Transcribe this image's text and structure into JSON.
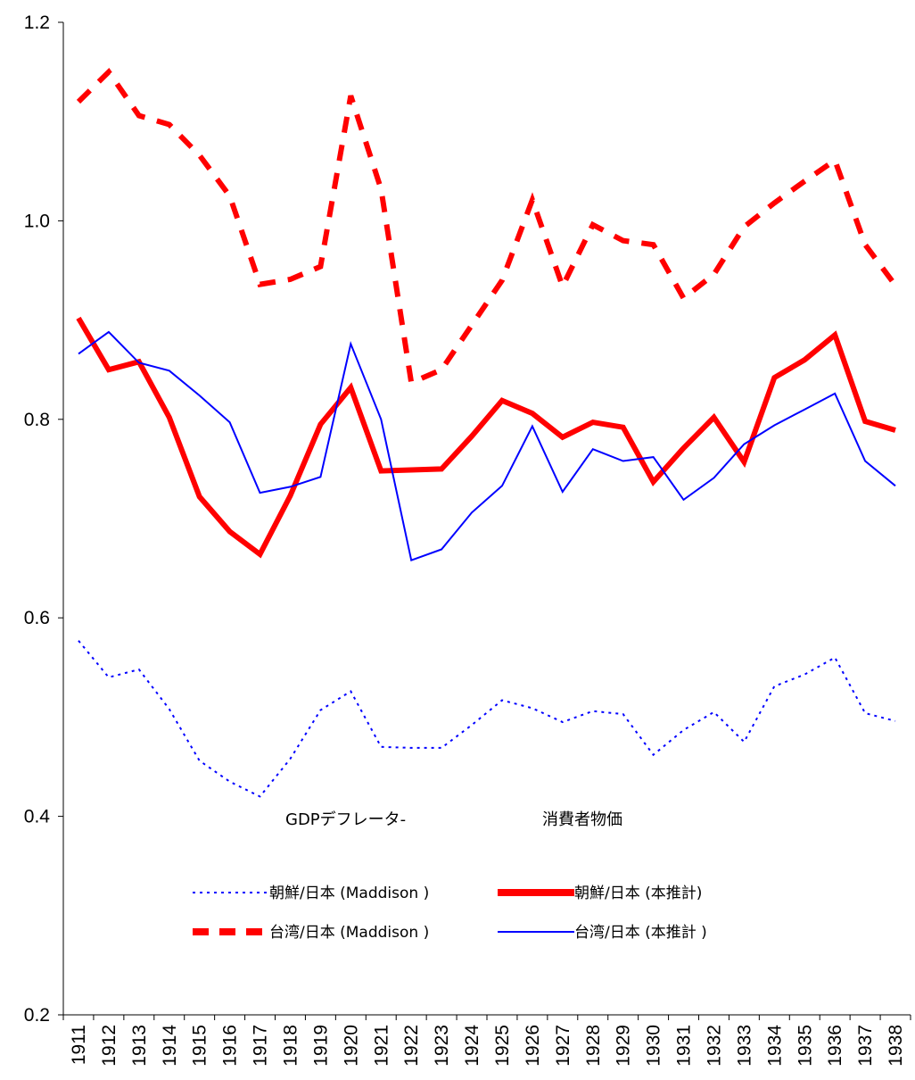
{
  "chart_data": {
    "type": "line",
    "x": [
      1911,
      1912,
      1913,
      1914,
      1915,
      1916,
      1917,
      1918,
      1919,
      1920,
      1921,
      1922,
      1923,
      1924,
      1925,
      1926,
      1927,
      1928,
      1929,
      1930,
      1931,
      1932,
      1933,
      1934,
      1935,
      1936,
      1937,
      1938
    ],
    "categories": [
      "1911",
      "1912",
      "1913",
      "1914",
      "1915",
      "1916",
      "1917",
      "1918",
      "1919",
      "1920",
      "1921",
      "1922",
      "1923",
      "1924",
      "1925",
      "1926",
      "1927",
      "1928",
      "1929",
      "1930",
      "1931",
      "1932",
      "1933",
      "1934",
      "1935",
      "1936",
      "1937",
      "1938"
    ],
    "ylim": [
      0.2,
      1.2
    ],
    "yticks": [
      "0.2",
      "0.4",
      "0.6",
      "0.8",
      "1.0",
      "1.2"
    ],
    "ytick_values": [
      0.2,
      0.4,
      0.6,
      0.8,
      1.0,
      1.2
    ],
    "grid": false,
    "legend_position": "bottom-center",
    "legend_groups": {
      "left": "GDPデフレータ-",
      "right": "消費者物価"
    },
    "series": [
      {
        "name": "朝鮮/日本 (Maddison )",
        "color": "#0000ff",
        "style": "dotted-thin",
        "values": [
          0.577,
          0.54,
          0.548,
          0.508,
          0.456,
          0.435,
          0.42,
          0.458,
          0.507,
          0.526,
          0.47,
          0.469,
          0.469,
          0.492,
          0.517,
          0.509,
          0.495,
          0.506,
          0.503,
          0.462,
          0.487,
          0.505,
          0.475,
          0.531,
          0.543,
          0.56,
          0.504,
          0.496
        ]
      },
      {
        "name": "朝鮮/日本 (本推計)",
        "color": "#ff0000",
        "style": "solid-thick",
        "values": [
          0.902,
          0.85,
          0.858,
          0.802,
          0.722,
          0.687,
          0.664,
          0.723,
          0.795,
          0.832,
          0.748,
          0.749,
          0.75,
          0.783,
          0.819,
          0.806,
          0.782,
          0.797,
          0.792,
          0.737,
          0.771,
          0.802,
          0.757,
          0.842,
          0.86,
          0.885,
          0.798,
          0.789
        ]
      },
      {
        "name": "台湾/日本 (Maddison )",
        "color": "#ff0000",
        "style": "dashed-thick",
        "values": [
          1.12,
          1.15,
          1.106,
          1.097,
          1.066,
          1.025,
          0.936,
          0.941,
          0.954,
          1.126,
          1.032,
          0.837,
          0.85,
          0.895,
          0.94,
          1.021,
          0.934,
          0.996,
          0.98,
          0.976,
          0.922,
          0.946,
          0.994,
          1.018,
          1.04,
          1.061,
          0.976,
          0.935
        ]
      },
      {
        "name": "台湾/日本 (本推計 )",
        "color": "#0000ff",
        "style": "solid-thin",
        "values": [
          0.866,
          0.888,
          0.857,
          0.849,
          0.824,
          0.797,
          0.726,
          0.732,
          0.742,
          0.876,
          0.8,
          0.658,
          0.669,
          0.706,
          0.733,
          0.793,
          0.727,
          0.77,
          0.758,
          0.762,
          0.719,
          0.741,
          0.775,
          0.794,
          0.81,
          0.826,
          0.758,
          0.733
        ]
      }
    ]
  }
}
